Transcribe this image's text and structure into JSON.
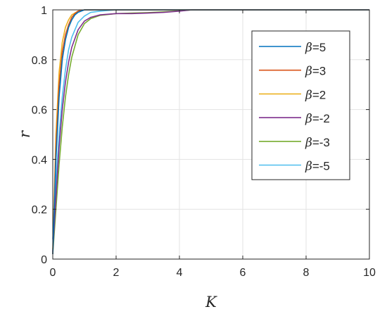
{
  "chart_data": {
    "type": "line",
    "title": "",
    "xlabel": "K",
    "ylabel": "r",
    "xlim": [
      0,
      10
    ],
    "ylim": [
      0,
      1
    ],
    "xticks": [
      0,
      2,
      4,
      6,
      8,
      10
    ],
    "yticks": [
      0,
      0.2,
      0.4,
      0.6,
      0.8,
      1
    ],
    "xtick_labels": [
      "0",
      "2",
      "4",
      "6",
      "8",
      "10"
    ],
    "ytick_labels": [
      "0",
      "0.2",
      "0.4",
      "0.6",
      "0.8",
      "1"
    ],
    "grid": true,
    "legend_position": "top-right",
    "series": [
      {
        "name": "β=5",
        "legend_prefix": "β",
        "legend_suffix": "=5",
        "color": "#0072BD",
        "x": [
          0,
          0.1,
          0.2,
          0.3,
          0.4,
          0.5,
          0.6,
          0.7,
          0.8,
          1.0,
          1.2,
          1.5,
          2,
          3,
          4,
          6,
          8,
          10
        ],
        "y": [
          0.02,
          0.4,
          0.65,
          0.8,
          0.88,
          0.93,
          0.96,
          0.98,
          0.99,
          1,
          1,
          1,
          1,
          1,
          1,
          1,
          1,
          1
        ]
      },
      {
        "name": "β=3",
        "legend_prefix": "β",
        "legend_suffix": "=3",
        "color": "#D95319",
        "x": [
          0,
          0.1,
          0.2,
          0.3,
          0.4,
          0.5,
          0.6,
          0.7,
          0.8,
          1.0,
          1.2,
          1.5,
          2,
          3,
          4,
          6,
          8,
          10
        ],
        "y": [
          0.02,
          0.45,
          0.7,
          0.83,
          0.9,
          0.94,
          0.97,
          0.985,
          0.995,
          1,
          1,
          1,
          1,
          1,
          1,
          1,
          1,
          1
        ]
      },
      {
        "name": "β=2",
        "legend_prefix": "β",
        "legend_suffix": "=2",
        "color": "#EDB120",
        "x": [
          0,
          0.1,
          0.2,
          0.3,
          0.4,
          0.5,
          0.6,
          0.8,
          1.0,
          1.2,
          1.5,
          2,
          3,
          4,
          6,
          8,
          10
        ],
        "y": [
          0.04,
          0.5,
          0.75,
          0.87,
          0.93,
          0.96,
          0.98,
          0.995,
          1,
          1,
          1,
          1,
          1,
          1,
          1,
          1,
          1
        ]
      },
      {
        "name": "β=-2",
        "legend_prefix": "β",
        "legend_suffix": "=-2",
        "color": "#7E2F8E",
        "x": [
          0,
          0.1,
          0.2,
          0.3,
          0.4,
          0.5,
          0.6,
          0.8,
          1.0,
          1.2,
          1.5,
          2.0,
          2.5,
          3.0,
          3.5,
          4.0,
          4.4,
          5,
          6,
          8,
          10
        ],
        "y": [
          0.03,
          0.25,
          0.45,
          0.6,
          0.71,
          0.79,
          0.85,
          0.92,
          0.955,
          0.97,
          0.98,
          0.985,
          0.985,
          0.987,
          0.99,
          0.995,
          1,
          1,
          1,
          1,
          1
        ]
      },
      {
        "name": "β=-3",
        "legend_prefix": "β",
        "legend_suffix": "=-3",
        "color": "#77AC30",
        "x": [
          0,
          0.1,
          0.2,
          0.3,
          0.4,
          0.5,
          0.6,
          0.8,
          1.0,
          1.2,
          1.5,
          2.0,
          2.5,
          3.0,
          3.5,
          4.0,
          4.4,
          5,
          6,
          8,
          10
        ],
        "y": [
          0.02,
          0.2,
          0.38,
          0.53,
          0.65,
          0.74,
          0.81,
          0.9,
          0.945,
          0.965,
          0.978,
          0.985,
          0.987,
          0.989,
          0.992,
          0.996,
          1,
          1,
          1,
          1,
          1
        ]
      },
      {
        "name": "β=-5",
        "legend_prefix": "β",
        "legend_suffix": "=-5",
        "color": "#4DBEEE",
        "x": [
          0,
          0.1,
          0.2,
          0.3,
          0.4,
          0.5,
          0.6,
          0.8,
          1.0,
          1.2,
          1.5,
          2.0,
          2.5,
          3,
          4,
          6,
          8,
          10
        ],
        "y": [
          0.08,
          0.3,
          0.5,
          0.65,
          0.76,
          0.84,
          0.89,
          0.95,
          0.975,
          0.99,
          0.995,
          1,
          1,
          1,
          1,
          1,
          1,
          1
        ]
      }
    ]
  }
}
